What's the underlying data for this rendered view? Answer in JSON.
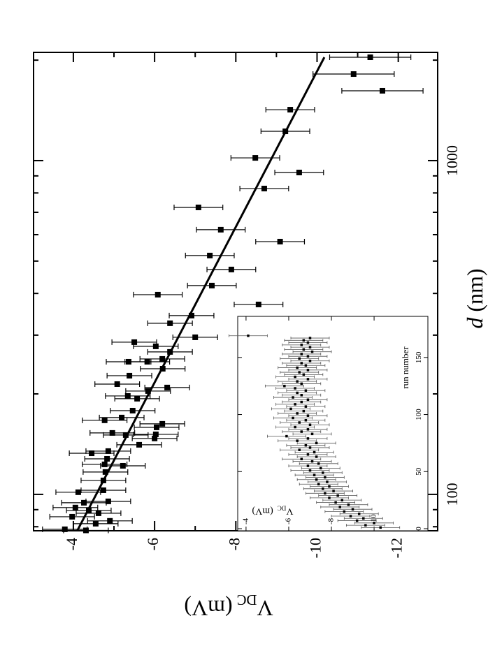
{
  "chart_data": [
    {
      "type": "scatter",
      "log_x": true,
      "color": "#000000",
      "xlabel": {
        "symbol": "d",
        "unit": "(nm)"
      },
      "ylabel": {
        "symbol": "V",
        "subscript": "DC",
        "unit": "(mV)"
      },
      "xlim": [
        77.8,
        2110
      ],
      "ylim": [
        -12.97,
        -3.02
      ],
      "xticks": [
        100,
        1000
      ],
      "xminor": [
        80,
        90,
        200,
        300,
        400,
        500,
        600,
        700,
        800,
        900,
        2000
      ],
      "yticks": [
        -4,
        -6,
        -8,
        -10,
        -12
      ],
      "yminor": [
        -5,
        -7,
        -9,
        -11
      ],
      "x": [
        78.6,
        78,
        85.7,
        81.7,
        83.3,
        91.3,
        89.5,
        87.8,
        95.3,
        94.4,
        101.5,
        102.9,
        110.1,
        116.7,
        123,
        121.8,
        127.8,
        134.8,
        132.8,
        140.8,
        150.6,
        152.8,
        158.8,
        151.3,
        147.1,
        162.7,
        178.2,
        169.9,
        166.7,
        193.5,
        197.2,
        204,
        209,
        214,
        249.7,
        226.8,
        237.9,
        249.7,
        267.2,
        254.6,
        277.7,
        285.8,
        295.6,
        325.6,
        343.3,
        396.6,
        370.7,
        422.3,
        471.8,
        519.5,
        571.9,
        620.9,
        724.1,
        824.8,
        921.3,
        1019,
        1224,
        1421,
        1619,
        1817,
        2040
      ],
      "values": [
        -3.79,
        -4.31,
        -3.97,
        -4.55,
        -4.9,
        -4.05,
        -4.38,
        -4.62,
        -4.86,
        -4.26,
        -4.12,
        -4.74,
        -4.74,
        -4.79,
        -4.77,
        -5.22,
        -4.83,
        -4.86,
        -4.45,
        -5.62,
        -5.29,
        -4.96,
        -6.05,
        -6.03,
        -6.0,
        -6.19,
        -5.46,
        -5.19,
        -4.77,
        -5.57,
        -5.34,
        -5.84,
        -6.31,
        -5.08,
        -5.82,
        -5.38,
        -6.2,
        -5.36,
        -6.38,
        -6.19,
        -6.03,
        -5.5,
        -7.0,
        -6.38,
        -6.91,
        -6.08,
        -8.56,
        -7.41,
        -7.89,
        -7.36,
        -9.09,
        -7.63,
        -7.08,
        -8.7,
        -9.56,
        -8.48,
        -9.22,
        -9.34,
        -11.61,
        -10.9,
        -11.31
      ],
      "errors": [
        0.55,
        0.55,
        0.55,
        0.55,
        0.55,
        0.55,
        0.55,
        0.55,
        0.55,
        0.55,
        0.55,
        0.55,
        0.55,
        0.55,
        0.55,
        0.55,
        0.55,
        0.55,
        0.55,
        0.55,
        0.55,
        0.55,
        0.55,
        0.55,
        0.55,
        0.55,
        0.55,
        0.55,
        0.55,
        0.55,
        0.55,
        0.55,
        0.55,
        0.55,
        0.55,
        0.55,
        0.55,
        0.55,
        0.55,
        0.55,
        0.55,
        0.55,
        0.55,
        0.55,
        0.55,
        0.6,
        0.6,
        0.6,
        0.6,
        0.6,
        0.6,
        0.6,
        0.6,
        0.6,
        0.6,
        0.6,
        0.6,
        0.6,
        1.0,
        1.0,
        1.0
      ],
      "fit": {
        "x": [
          78,
          2040
        ],
        "values": [
          -4.1,
          -10.18
        ]
      }
    },
    {
      "type": "scatter",
      "color": "#000000",
      "xlabel": "run number",
      "ylabel": {
        "symbol": "V",
        "subscript": "DC",
        "unit": "(mV)"
      },
      "xlim": [
        -1.84,
        186
      ],
      "ylim": [
        -12.52,
        -3.61
      ],
      "xticks": [
        0,
        50,
        100,
        150
      ],
      "yticks": [
        -4,
        -6,
        -8,
        -10
      ],
      "error": 0.9,
      "x": [
        1,
        3,
        5,
        7,
        9,
        11,
        13,
        15,
        17,
        19,
        21,
        23,
        25,
        27,
        29,
        31,
        33,
        35,
        37,
        39,
        41,
        43,
        45,
        47,
        49,
        51,
        53,
        55,
        57,
        59,
        61,
        63,
        65,
        67,
        69,
        71,
        73,
        75,
        77,
        79,
        81,
        83,
        85,
        87,
        89,
        91,
        93,
        95,
        97,
        99,
        101,
        103,
        105,
        107,
        109,
        111,
        113,
        115,
        117,
        119,
        121,
        123,
        125,
        127,
        129,
        131,
        133,
        135,
        137,
        139,
        141,
        143,
        145,
        147,
        149,
        151,
        153,
        155,
        157,
        159,
        161,
        163,
        165,
        167,
        169
      ],
      "values": [
        -10.3,
        -9.6,
        -10.0,
        -9.2,
        -9.5,
        -8.9,
        -9.3,
        -8.6,
        -9.0,
        -8.4,
        -8.8,
        -8.2,
        -8.5,
        -7.9,
        -8.3,
        -7.7,
        -8.1,
        -7.6,
        -7.9,
        -7.4,
        -7.8,
        -7.3,
        -7.7,
        -7.2,
        -7.6,
        -7.0,
        -7.5,
        -6.9,
        -7.4,
        -7.1,
        -6.6,
        -7.3,
        -6.9,
        -7.2,
        -6.5,
        -7.0,
        -6.8,
        -7.3,
        -6.4,
        -6.9,
        -5.9,
        -7.1,
        -6.6,
        -6.9,
        -6.3,
        -7.0,
        -6.5,
        -6.8,
        -6.2,
        -6.9,
        -6.4,
        -6.7,
        -6.1,
        -6.8,
        -6.3,
        -6.6,
        -6.9,
        -6.2,
        -6.6,
        -6.4,
        -6.8,
        -6.3,
        -5.8,
        -6.6,
        -6.4,
        -6.9,
        -6.3,
        -6.7,
        -6.5,
        -6.9,
        -6.4,
        -6.8,
        -6.6,
        -7.0,
        -6.5,
        -6.9,
        -6.6,
        -7.1,
        -6.7,
        -7.0,
        -6.6,
        -6.9,
        -6.7,
        -7.0,
        -4.1
      ]
    }
  ]
}
